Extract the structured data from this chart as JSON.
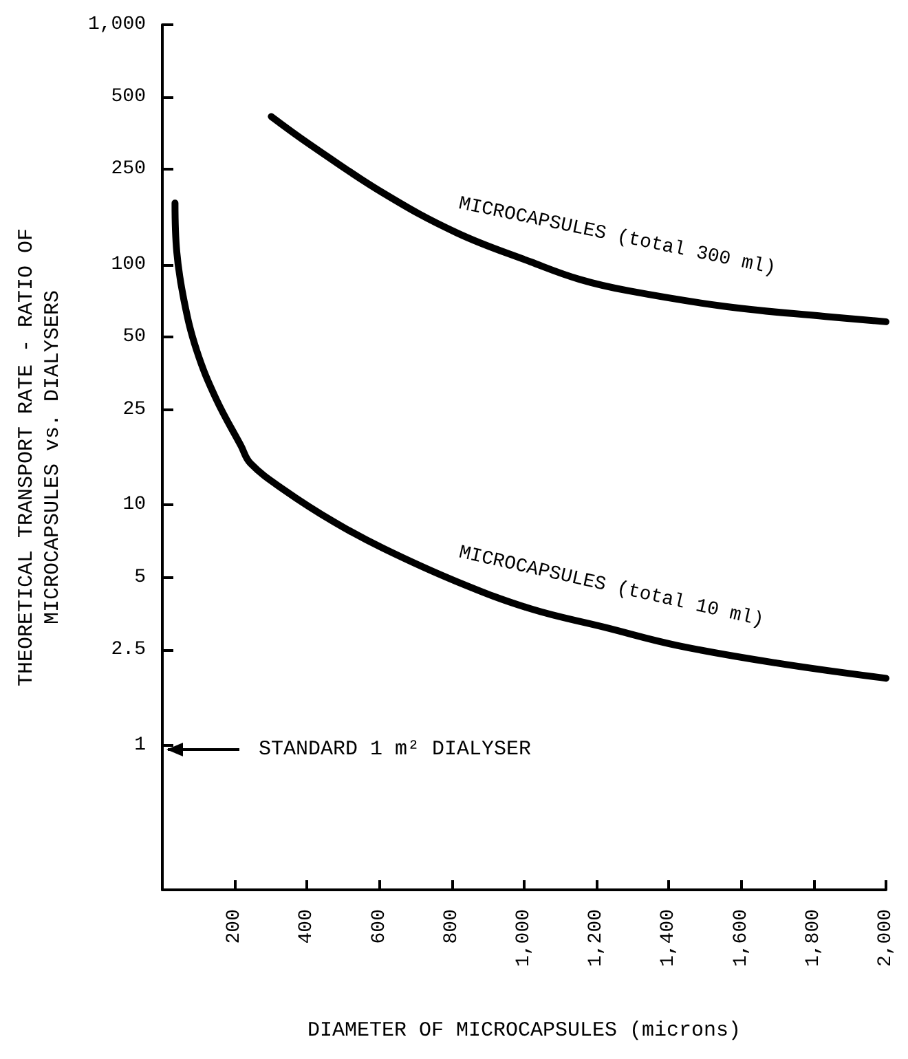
{
  "chart_data": {
    "type": "line",
    "xlabel": "DIAMETER OF MICROCAPSULES (microns)",
    "ylabel": "THEORETICAL TRANSPORT RATE - RATIO OF\nMICROCAPSULES vs. DIALYSERS",
    "series": [
      {
        "name": "MICROCAPSULES (total 300 ml)",
        "color": "#000000",
        "x": [
          301,
          407,
          611,
          814,
          1018,
          1154,
          1289,
          1561,
          1833,
          2000
        ],
        "values": [
          415,
          318,
          199,
          136,
          103,
          87,
          78,
          67,
          61,
          58
        ]
      },
      {
        "name": "MICROCAPSULES (total 10 ml)",
        "color": "#000000",
        "x": [
          35,
          40,
          60,
          95,
          149,
          217,
          244,
          339,
          475,
          611,
          814,
          1018,
          1222,
          1425,
          1697,
          2000
        ],
        "values": [
          181,
          113,
          71,
          44,
          27.6,
          17.7,
          14.9,
          11.5,
          8.5,
          6.6,
          4.8,
          3.7,
          3.1,
          2.6,
          2.2,
          1.9
        ]
      }
    ],
    "annotations": [
      "STANDARD 1 m² DIALYSER"
    ],
    "xlim": [
      0,
      2000
    ],
    "xticks": [
      200,
      400,
      600,
      800,
      {
        "value": 1000,
        "label": "1,000"
      },
      {
        "value": 1200,
        "label": "1,200"
      },
      {
        "value": 1400,
        "label": "1,400"
      },
      {
        "value": 1600,
        "label": "1,600"
      },
      {
        "value": 1800,
        "label": "1,800"
      },
      {
        "value": 2000,
        "label": "2,000"
      }
    ],
    "ylim": [
      0.25,
      1000
    ],
    "yticks": [
      1,
      2.5,
      5,
      10,
      25,
      50,
      100,
      250,
      500,
      {
        "value": 1000,
        "label": "1,000"
      }
    ],
    "log": "y",
    "grid": false,
    "legend": false,
    "marker": "none",
    "line_style": "solid"
  }
}
